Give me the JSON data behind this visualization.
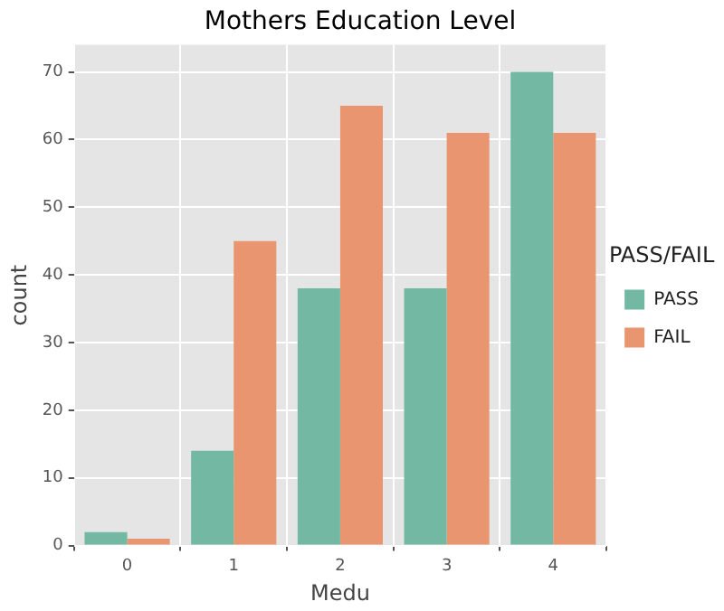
{
  "chart_data": {
    "type": "bar",
    "title": "Mothers Education Level",
    "xlabel": "Medu",
    "ylabel": "count",
    "legend_title": "PASS/FAIL",
    "categories": [
      "0",
      "1",
      "2",
      "3",
      "4"
    ],
    "series": [
      {
        "name": "PASS",
        "color": "#72b8a2",
        "values": [
          2,
          14,
          38,
          38,
          70
        ]
      },
      {
        "name": "FAIL",
        "color": "#e9956f",
        "values": [
          1,
          45,
          65,
          61,
          61
        ]
      }
    ],
    "ylim": [
      0,
      74
    ],
    "yticks": [
      0,
      10,
      20,
      30,
      40,
      50,
      60,
      70
    ],
    "grid": true,
    "legend": "right"
  }
}
